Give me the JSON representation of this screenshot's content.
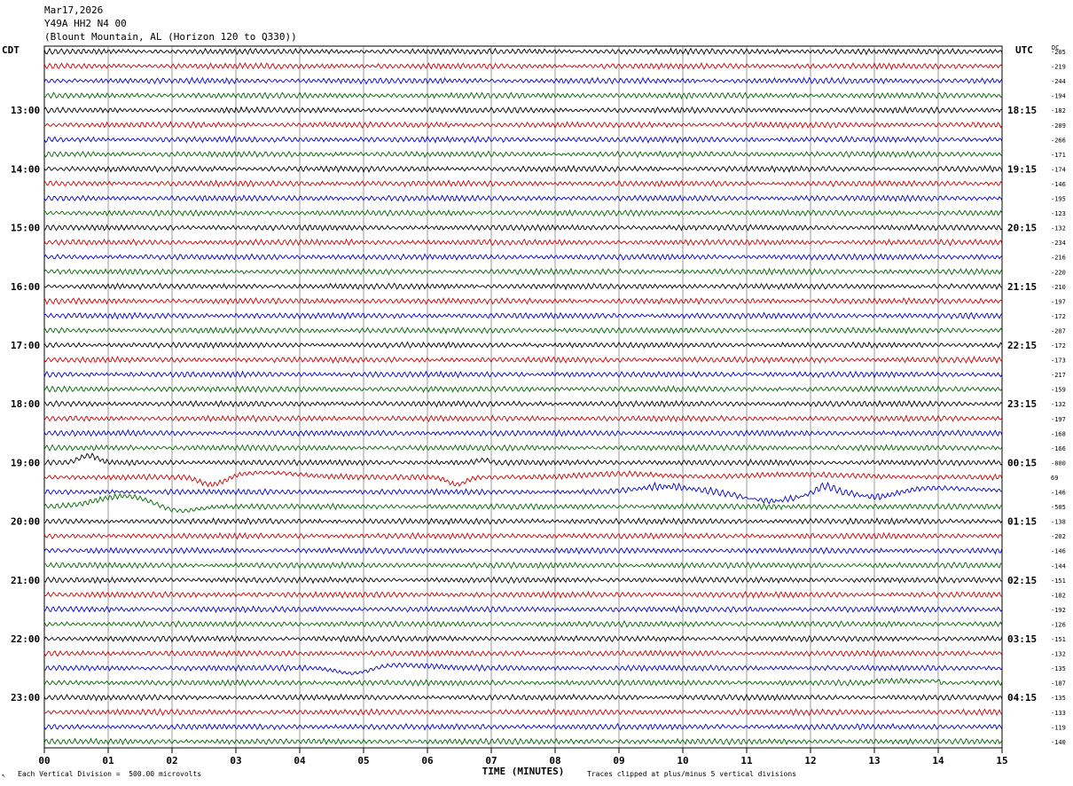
{
  "header": {
    "date": "Mar17,2026",
    "station": "Y49A HH2 N4 00",
    "location": "(Blount Mountain, AL (Horizon 120 to Q330))"
  },
  "left_timezone": "CDT",
  "right_timezone": "UTC",
  "dc_label": "DC",
  "footer": {
    "scale_note": "Each Vertical Division =  500.00 microvolts",
    "clip_note": "Traces clipped at plus/minus 5 vertical divisions"
  },
  "chart_data": {
    "type": "line",
    "xlabel": "TIME (MINUTES)",
    "xlim": [
      0,
      15
    ],
    "x_ticks": [
      "00",
      "01",
      "02",
      "03",
      "04",
      "05",
      "06",
      "07",
      "08",
      "09",
      "10",
      "11",
      "12",
      "13",
      "14",
      "15"
    ],
    "left_hour_labels": [
      "13:00",
      "14:00",
      "15:00",
      "16:00",
      "17:00",
      "18:00",
      "19:00",
      "20:00",
      "21:00",
      "22:00",
      "23:00"
    ],
    "right_hour_labels": [
      "18:15",
      "19:15",
      "20:15",
      "21:15",
      "22:15",
      "23:15",
      "00:15",
      "01:15",
      "02:15",
      "03:15",
      "04:15"
    ],
    "trace_colors": [
      "#000000",
      "#cc0000",
      "#0000cc",
      "#006600"
    ],
    "dc_offsets": [
      "-205",
      "-219",
      "-244",
      "-194",
      "-182",
      "-209",
      "-266",
      "-171",
      "-174",
      "-146",
      "-195",
      "-123",
      "-132",
      "-234",
      "-216",
      "-220",
      "-210",
      "-197",
      "-172",
      "-207",
      "-172",
      "-173",
      "-217",
      "-159",
      "-132",
      "-197",
      "-168",
      "-166",
      "-800",
      "69",
      "-146",
      "-505",
      "-138",
      "-202",
      "-146",
      "-144",
      "-151",
      "-182",
      "-192",
      "-126",
      "-151",
      "-132",
      "-135",
      "-187",
      "-135",
      "-133",
      "-119",
      "-140"
    ]
  }
}
